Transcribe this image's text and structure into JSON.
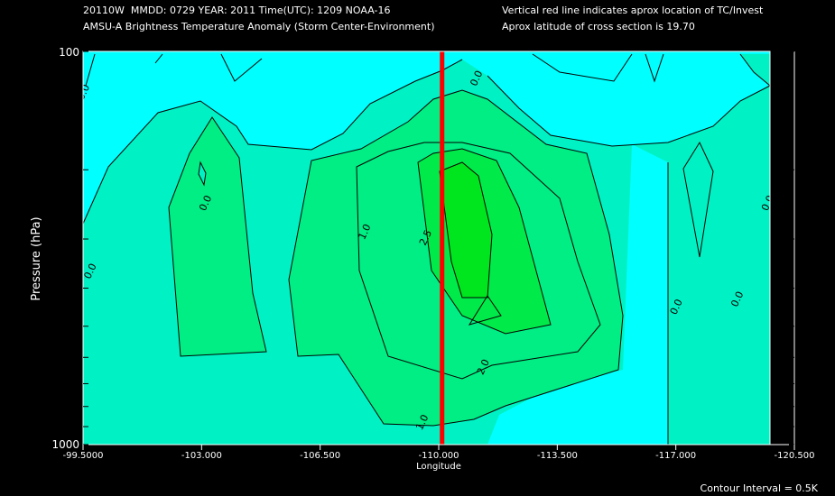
{
  "header": {
    "line1_left": "20110W  MMDD: 0729 YEAR: 2011 Time(UTC): 1209 NOAA-16",
    "line2_left": "AMSU-A Brightness Temperature Anomaly (Storm Center-Environment)",
    "line1_right": "Vertical red line indicates aprox location of TC/Invest",
    "line2_right": "Aprox latitude of cross section is 19.70"
  },
  "footer": {
    "contour_interval": "Contour Interval = 0.5K"
  },
  "chart_data": {
    "type": "heatmap",
    "ylabel": "Pressure (hPa)",
    "xlabel": "Longitude",
    "x_ticks": [
      "-99.5000",
      "-103.000",
      "-106.500",
      "-110.000",
      "-113.500",
      "-117.000",
      "-120.500"
    ],
    "x_tick_values": [
      -99.5,
      -103.0,
      -106.5,
      -110.0,
      -113.5,
      -117.0,
      -120.5
    ],
    "y_ticks": [
      "100",
      "1000"
    ],
    "y_range": [
      100,
      1000
    ],
    "y_scale": "log",
    "x_range": [
      -99.5,
      -120.5
    ],
    "storm_longitude": -110.1,
    "contour_labels": [
      {
        "text": "0.0",
        "x": -99.6,
        "y": 128
      },
      {
        "text": "0.0",
        "x": -99.8,
        "y": 365
      },
      {
        "text": "0.0",
        "x": -103.2,
        "y": 245
      },
      {
        "text": "1.0",
        "x": -107.9,
        "y": 290
      },
      {
        "text": "2.5",
        "x": -109.7,
        "y": 300
      },
      {
        "text": "0.0",
        "x": -111.2,
        "y": 118
      },
      {
        "text": "2.0",
        "x": -111.4,
        "y": 640
      },
      {
        "text": "1.0",
        "x": -109.6,
        "y": 885
      },
      {
        "text": "0.0",
        "x": -117.1,
        "y": 450
      },
      {
        "text": "0.0",
        "x": -118.9,
        "y": 430
      },
      {
        "text": "0.0",
        "x": -119.8,
        "y": 245
      }
    ],
    "colors": {
      "below_0": "#00ffff",
      "level_0": "#00f2c4",
      "level_1": "#00ee84",
      "level_2": "#00ea4a",
      "level_2_5": "#00e61e",
      "storm_line": "#ff0000"
    },
    "contour_interval": 0.5
  }
}
